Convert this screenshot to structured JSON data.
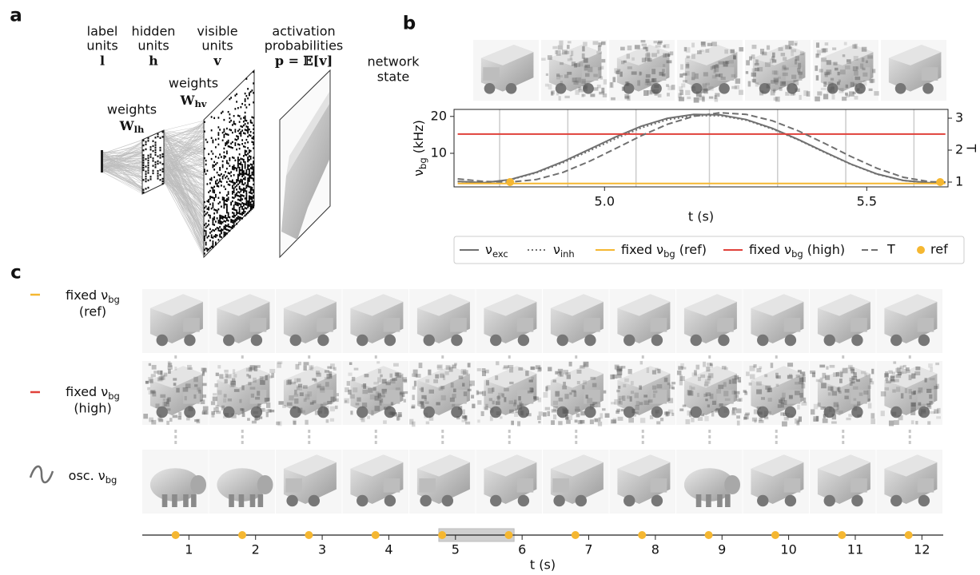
{
  "panel_a": {
    "letter": "a",
    "headers": [
      {
        "lines": [
          "label",
          "units"
        ],
        "symbol": "l"
      },
      {
        "lines": [
          "hidden",
          "units"
        ],
        "symbol": "h"
      },
      {
        "lines": [
          "visible",
          "units"
        ],
        "symbol": "v"
      },
      {
        "lines": [
          "activation",
          "probabilities"
        ],
        "symbol": "p = 𝔼[v]"
      }
    ],
    "weights": [
      {
        "text": "weights",
        "symbol": {
          "main": "W",
          "sub": "lh"
        }
      },
      {
        "text": "weights",
        "symbol": {
          "main": "W",
          "sub": "hv"
        }
      }
    ]
  },
  "panel_b": {
    "letter": "b",
    "row_label": [
      "network",
      "state"
    ]
  },
  "panel_c": {
    "letter": "c",
    "rows": [
      {
        "lines": [
          {
            "main": "fixed ν",
            "sub": "bg"
          },
          "(ref)"
        ]
      },
      {
        "lines": [
          {
            "main": "fixed ν",
            "sub": "bg"
          },
          "(high)"
        ]
      },
      {
        "lines": [
          {
            "main": "osc. ν",
            "sub": "bg"
          }
        ]
      }
    ]
  },
  "chart_data": [
    {
      "type": "line",
      "xlabel": "t (s)",
      "ylabel": {
        "main": "ν",
        "sub": "bg",
        "rest": " (kHz)"
      },
      "y2label": "T",
      "x": [
        4.72,
        4.77,
        4.82,
        4.87,
        4.92,
        4.97,
        5.02,
        5.07,
        5.12,
        5.17,
        5.22,
        5.27,
        5.32,
        5.37,
        5.42,
        5.47,
        5.52,
        5.57,
        5.62,
        5.65
      ],
      "xlim": [
        4.713,
        5.655
      ],
      "xticks": [
        {
          "value": 5,
          "label": "5.0"
        },
        {
          "value": 5.5,
          "label": "5.5"
        }
      ],
      "ylim": [
        0.9,
        21.9
      ],
      "yticks": [
        10,
        20
      ],
      "y2lim": [
        0.85,
        3.275
      ],
      "y2ticks": [
        1,
        2,
        3
      ],
      "vlines": [
        4.8,
        4.93,
        5.06,
        5.2,
        5.33,
        5.46,
        5.59
      ],
      "vline_color": "#cccccc",
      "legend": "bottom",
      "series": [
        {
          "name": {
            "main": "ν",
            "sub": "exc"
          },
          "color": "#707070",
          "style": "solid",
          "values": [
            2.39,
            2.03,
            2.88,
            4.86,
            7.69,
            11.0,
            14.37,
            17.33,
            19.5,
            20.55,
            20.43,
            19.15,
            16.77,
            13.71,
            10.33,
            7.08,
            4.38,
            2.63,
            2.0,
            2.22
          ]
        },
        {
          "name": {
            "main": "ν",
            "sub": "inh"
          },
          "color": "#707070",
          "style": "dotted",
          "values": [
            2.35,
            2.0,
            2.8,
            4.7,
            7.4,
            10.6,
            13.9,
            16.9,
            19.1,
            20.2,
            20.2,
            19.0,
            16.6,
            13.6,
            10.2,
            7.0,
            4.3,
            2.6,
            2.0,
            2.2
          ]
        },
        {
          "name": {
            "main": "fixed ν",
            "sub": "bg",
            "rest": " (ref)"
          },
          "color": "#f5b731",
          "style": "solid",
          "values": [
            1.8,
            1.8,
            1.8,
            1.8,
            1.8,
            1.8,
            1.8,
            1.8,
            1.8,
            1.8,
            1.8,
            1.8,
            1.8,
            1.8,
            1.8,
            1.8,
            1.8,
            1.8,
            1.8,
            1.8
          ]
        },
        {
          "name": {
            "main": "fixed ν",
            "sub": "bg",
            "rest": " (high)"
          },
          "color": "#e0413a",
          "style": "solid",
          "values": [
            15.2,
            15.2,
            15.2,
            15.2,
            15.2,
            15.2,
            15.2,
            15.2,
            15.2,
            15.2,
            15.2,
            15.2,
            15.2,
            15.2,
            15.2,
            15.2,
            15.2,
            15.2,
            15.2,
            15.2
          ]
        },
        {
          "name": "T",
          "color": "#707070",
          "style": "dashed",
          "axis": "y2",
          "values": [
            1.1,
            1.02,
            1.0,
            1.08,
            1.3,
            1.64,
            2.04,
            2.45,
            2.81,
            3.06,
            3.17,
            3.12,
            2.92,
            2.6,
            2.21,
            1.8,
            1.43,
            1.15,
            1.01,
            1.0
          ]
        },
        {
          "name": "ref",
          "color": "#f5b731",
          "style": "marker",
          "axis": "y2",
          "x": [
            4.82,
            5.64
          ],
          "values": [
            1,
            1
          ]
        }
      ]
    },
    {
      "type": "timeline",
      "xlabel": "t (s)",
      "xlim": [
        0.3,
        12.32
      ],
      "xticks": [
        1,
        2,
        3,
        4,
        5,
        6,
        7,
        8,
        9,
        10,
        11,
        12
      ],
      "x": [
        0.8,
        1.8,
        2.8,
        3.8,
        4.8,
        5.8,
        6.8,
        7.8,
        8.8,
        9.8,
        10.8,
        11.8
      ],
      "color": "#f5b731",
      "highlight": [
        4.75,
        5.88
      ],
      "highlight_color": "#d0d0d0"
    }
  ]
}
